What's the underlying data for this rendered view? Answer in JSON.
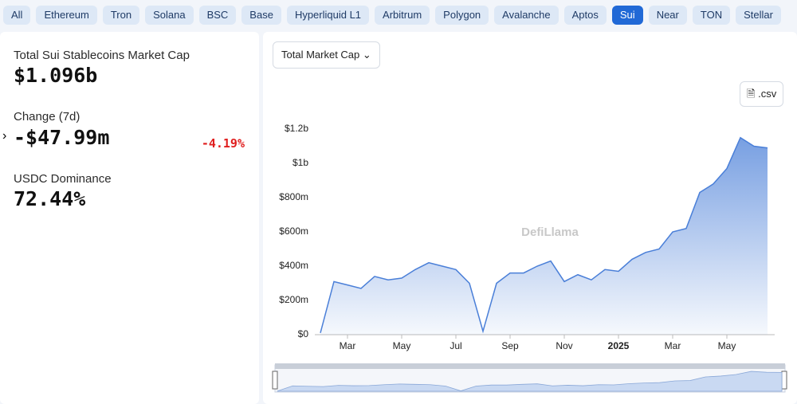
{
  "tabs": [
    "All",
    "Ethereum",
    "Tron",
    "Solana",
    "BSC",
    "Base",
    "Hyperliquid L1",
    "Arbitrum",
    "Polygon",
    "Avalanche",
    "Aptos",
    "Sui",
    "Near",
    "TON",
    "Stellar"
  ],
  "active_tab": "Sui",
  "stats": {
    "market_cap": {
      "label": "Total Sui Stablecoins Market Cap",
      "value": "$1.096b"
    },
    "change": {
      "label": "Change (7d)",
      "value": "-$47.99m",
      "percent": "-4.19%"
    },
    "dominance": {
      "label": "USDC Dominance",
      "value": "72.44%"
    }
  },
  "dropdown": "Total Market Cap",
  "csv_button": ".csv",
  "chart_data": {
    "type": "area",
    "watermark": "DefiLlama",
    "color": "#4a7fd8",
    "categories": [
      null,
      null,
      "Mar",
      null,
      null,
      null,
      "May",
      null,
      null,
      null,
      "Jul",
      null,
      null,
      null,
      "Sep",
      null,
      null,
      null,
      "Nov",
      null,
      null,
      null,
      "2025",
      null,
      null,
      null,
      "Mar",
      null,
      null,
      null,
      "May",
      null,
      null,
      null
    ],
    "values": [
      10000000,
      310000000,
      290000000,
      270000000,
      340000000,
      320000000,
      330000000,
      380000000,
      420000000,
      400000000,
      380000000,
      300000000,
      20000000,
      300000000,
      360000000,
      360000000,
      400000000,
      430000000,
      310000000,
      350000000,
      320000000,
      380000000,
      370000000,
      440000000,
      480000000,
      500000000,
      600000000,
      620000000,
      830000000,
      880000000,
      970000000,
      1150000000,
      1100000000,
      1090000000
    ],
    "ylim": [
      0,
      1200000000
    ],
    "yticks": [
      {
        "value": 0,
        "label": "$0"
      },
      {
        "value": 200000000,
        "label": "$200m"
      },
      {
        "value": 400000000,
        "label": "$400m"
      },
      {
        "value": 600000000,
        "label": "$600m"
      },
      {
        "value": 800000000,
        "label": "$800m"
      },
      {
        "value": 1000000000,
        "label": "$1b"
      },
      {
        "value": 1200000000,
        "label": "$1.2b"
      }
    ],
    "grid": false
  }
}
